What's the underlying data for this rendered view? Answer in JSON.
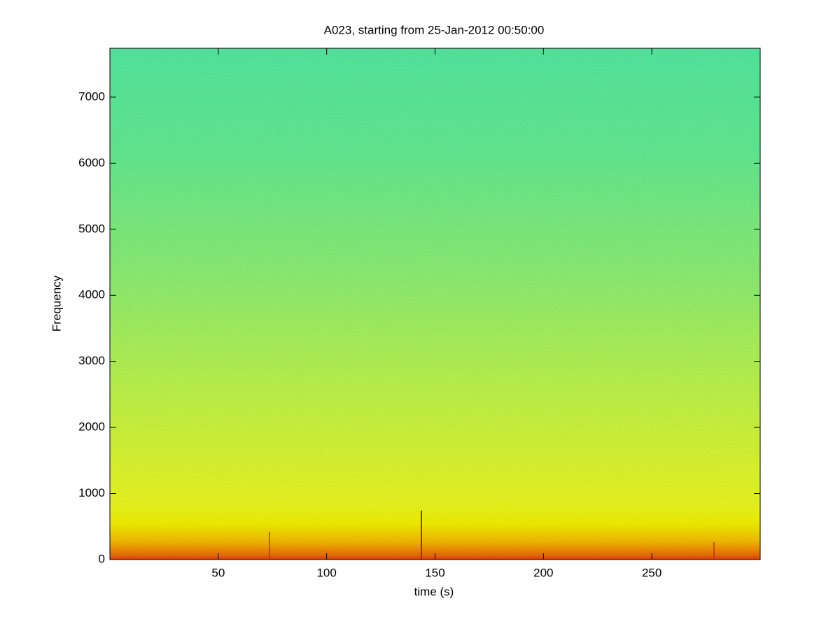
{
  "chart_data": {
    "type": "spectrogram",
    "title": "A023, starting from 25-Jan-2012 00:50:00",
    "x_label": "time (s)",
    "y_label": "Frequency",
    "xlim": [
      0,
      300
    ],
    "ylim": [
      0,
      7740
    ],
    "xticks": [
      50,
      100,
      150,
      200,
      250
    ],
    "yticks": [
      0,
      1000,
      2000,
      3000,
      4000,
      5000,
      6000,
      7000
    ]
  }
}
